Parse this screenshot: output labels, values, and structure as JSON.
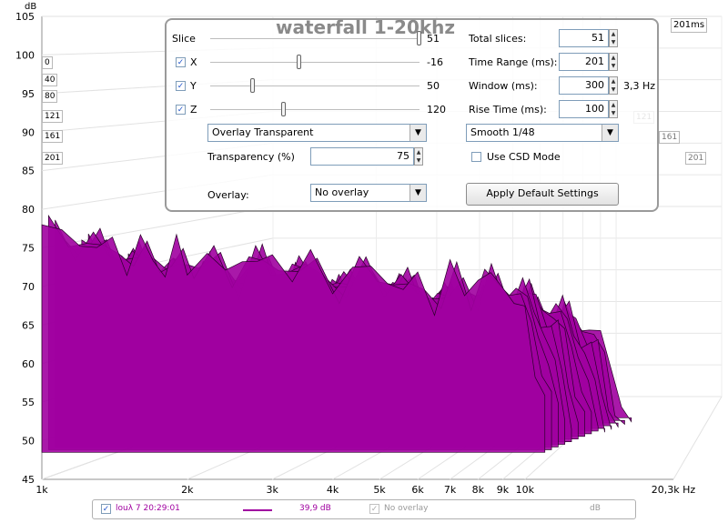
{
  "chart_data": {
    "type": "area",
    "title": "waterfall 1-20khz",
    "ylabel": "dB",
    "ylim": [
      45,
      105
    ],
    "y_ticks": [
      "105",
      "100",
      "95",
      "90",
      "85",
      "80",
      "75",
      "70",
      "65",
      "60",
      "55",
      "50",
      "45"
    ],
    "x_ticks": [
      "1k",
      "2k",
      "3k",
      "4k",
      "5k",
      "6k",
      "7k",
      "8k",
      "9k",
      "10k",
      "20,3k Hz"
    ],
    "xscale": "log",
    "xlim": [
      1000,
      20300
    ],
    "time_axis_label": "201ms",
    "slices": 51,
    "time_range_ms": 201,
    "series": [
      {
        "name": "louλ 7 20:29:01",
        "color": "#a000a0",
        "x": [
          1000,
          1100,
          1200,
          1300,
          1400,
          1500,
          1600,
          1700,
          1800,
          1900,
          2000,
          2200,
          2400,
          2600,
          2800,
          3000,
          3300,
          3600,
          4000,
          4400,
          4800,
          5200,
          5600,
          6000,
          6500,
          7000,
          7500,
          8000,
          8500,
          9000,
          9500,
          10000,
          10500,
          11000
        ],
        "values": [
          78,
          76,
          77,
          74,
          76,
          73,
          75,
          74,
          72,
          75,
          73,
          74,
          71,
          75,
          72,
          74,
          72,
          73,
          70,
          73,
          71,
          72,
          69,
          71,
          68,
          72,
          69,
          72,
          70,
          71,
          68,
          66,
          60,
          55
        ]
      }
    ]
  },
  "depth_labels": [
    "0",
    "40",
    "80",
    "121",
    "161",
    "201"
  ],
  "depth_labels_right": [
    "121",
    "161",
    "201"
  ],
  "panel": {
    "slice_label": "Slice",
    "slice_value": "51",
    "x_label": "X",
    "x_value": "-16",
    "y_label": "Y",
    "y_value": "50",
    "z_label": "Z",
    "z_value": "120",
    "overlay_mode": "Overlay Transparent",
    "transparency_label": "Transparency (%)",
    "transparency_value": "75",
    "overlay_label": "Overlay:",
    "overlay_value": "No overlay",
    "total_slices_label": "Total slices:",
    "total_slices_value": "51",
    "time_range_label": "Time Range (ms):",
    "time_range_value": "201",
    "window_label": "Window (ms):",
    "window_value": "300",
    "window_hz": "3,3 Hz",
    "rise_label": "Rise Time (ms):",
    "rise_value": "100",
    "smoothing_value": "Smooth 1/48",
    "csd_label": "Use CSD Mode",
    "apply_label": "Apply Default Settings"
  },
  "legend": {
    "series_name": "louλ 7 20:29:01",
    "series_value": "39,9 dB",
    "overlay_name": "No overlay",
    "overlay_unit": "dB"
  }
}
